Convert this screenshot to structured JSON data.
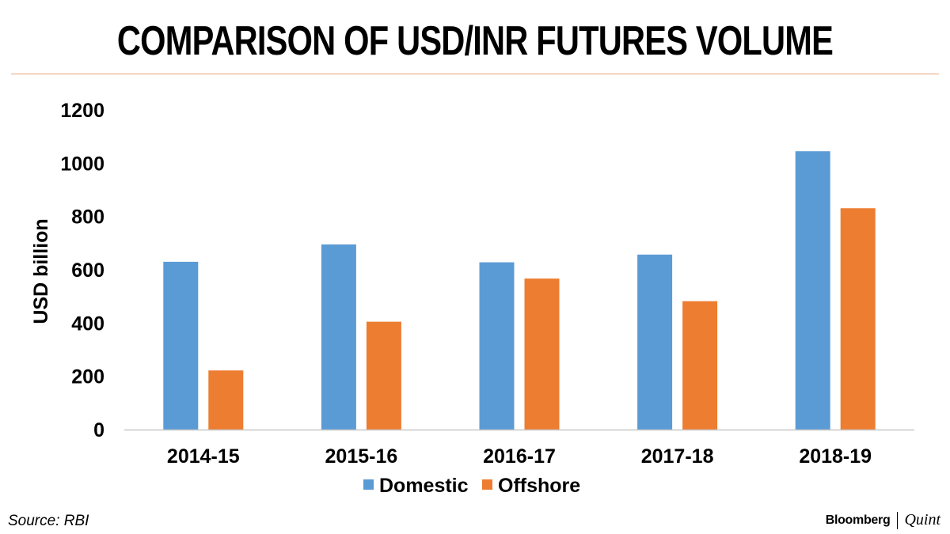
{
  "title": "COMPARISON OF USD/INR FUTURES VOLUME",
  "source": "Source: RBI",
  "brand": {
    "primary": "Bloomberg",
    "secondary": "Quint"
  },
  "chart_data": {
    "type": "bar",
    "categories": [
      "2014-15",
      "2015-16",
      "2016-17",
      "2017-18",
      "2018-19"
    ],
    "series": [
      {
        "name": "Domestic",
        "color": "#5b9bd5",
        "values": [
          630,
          695,
          628,
          657,
          1045
        ]
      },
      {
        "name": "Offshore",
        "color": "#ed7d31",
        "values": [
          222,
          405,
          567,
          482,
          831
        ]
      }
    ],
    "title": "COMPARISON OF USD/INR FUTURES VOLUME",
    "xlabel": "",
    "ylabel": "USD billion",
    "ylim": [
      0,
      1200
    ],
    "yticks": [
      0,
      200,
      400,
      600,
      800,
      1000,
      1200
    ],
    "grid": false,
    "legend": "bottom"
  }
}
